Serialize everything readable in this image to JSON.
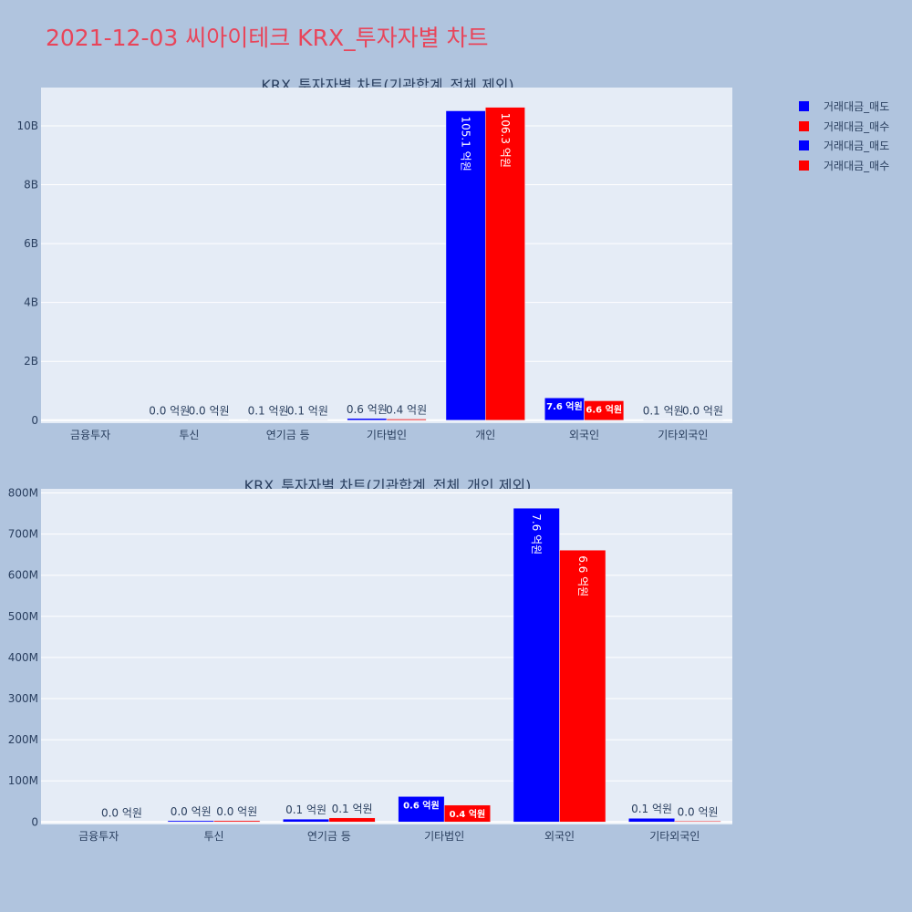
{
  "header": {
    "title": "2021-12-03 씨아이테크 KRX_투자자별 차트"
  },
  "legend": [
    {
      "label": "거래대금_매도",
      "color": "#0000ff"
    },
    {
      "label": "거래대금_매수",
      "color": "#ff0000"
    },
    {
      "label": "거래대금_매도",
      "color": "#0000ff"
    },
    {
      "label": "거래대금_매수",
      "color": "#ff0000"
    }
  ],
  "chart_data": [
    {
      "type": "bar",
      "title": "KRX_투자자별 차트(기관합계_전체 제외)",
      "categories": [
        "금융투자",
        "투신",
        "연기금 등",
        "기타법인",
        "개인",
        "외국인",
        "기타외국인"
      ],
      "series": [
        {
          "name": "거래대금_매도",
          "color": "#0000ff",
          "values": [
            0,
            3000000,
            8000000,
            61000000,
            10510000000,
            760000000,
            10000000
          ],
          "labels": [
            "",
            "0.0 억원",
            "0.1 억원",
            "0.6 억원",
            "105.1 억원",
            "7.6 억원",
            "0.1 억원"
          ]
        },
        {
          "name": "거래대금_매수",
          "color": "#ff0000",
          "values": [
            0,
            3000000,
            10000000,
            40000000,
            10630000000,
            660000000,
            2000000
          ],
          "labels": [
            "",
            "0.0 억원",
            "0.1 억원",
            "0.4 억원",
            "106.3 억원",
            "6.6 억원",
            "0.0 억원"
          ]
        }
      ],
      "yticks": [
        0,
        2000000000,
        4000000000,
        6000000000,
        8000000000,
        10000000000
      ],
      "ytick_labels": [
        "0",
        "2B",
        "4B",
        "6B",
        "8B",
        "10B"
      ],
      "ylim": [
        -100000000,
        11300000000
      ]
    },
    {
      "type": "bar",
      "title": "KRX_투자자별 차트(기관합계_전체_개인 제외)",
      "categories": [
        "금융투자",
        "투신",
        "연기금 등",
        "기타법인",
        "외국인",
        "기타외국인"
      ],
      "series": [
        {
          "name": "거래대금_매도",
          "color": "#0000ff",
          "values": [
            0,
            3000000,
            7000000,
            62000000,
            763000000,
            9000000
          ],
          "labels": [
            "",
            "0.0 억원",
            "0.1 억원",
            "0.6 억원",
            "7.6 억원",
            "0.1 억원"
          ]
        },
        {
          "name": "거래대금_매수",
          "color": "#ff0000",
          "values": [
            0,
            3000000,
            10000000,
            41000000,
            661000000,
            2000000
          ],
          "labels": [
            "0.0 억원",
            "0.0 억원",
            "0.1 억원",
            "0.4 억원",
            "6.6 억원",
            "0.0 억원"
          ]
        }
      ],
      "yticks": [
        0,
        100000000,
        200000000,
        300000000,
        400000000,
        500000000,
        600000000,
        700000000,
        800000000
      ],
      "ytick_labels": [
        "0",
        "100M",
        "200M",
        "300M",
        "400M",
        "500M",
        "600M",
        "700M",
        "800M"
      ],
      "ylim": [
        -6000000,
        810000000
      ]
    }
  ]
}
